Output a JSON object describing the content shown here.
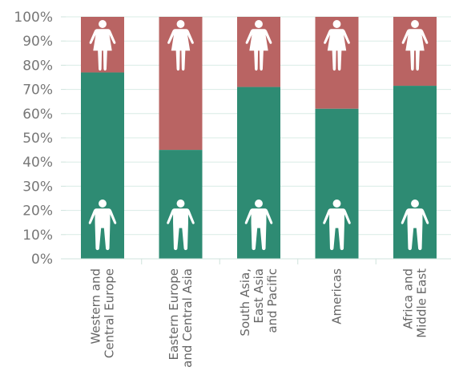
{
  "chart_data": {
    "type": "bar",
    "stacked": true,
    "percent": true,
    "categories": [
      [
        "Western and",
        "Central Europe"
      ],
      [
        "Eastern Europe",
        "and Central Asia"
      ],
      [
        "South Asia,",
        "East Asia",
        "and Pacific"
      ],
      [
        "Americas"
      ],
      [
        "Africa and",
        "Middle East"
      ]
    ],
    "series": [
      {
        "color": "#2e8b73",
        "icon": "male-figure-icon",
        "values": [
          77,
          45,
          71,
          62,
          71.5
        ]
      },
      {
        "color": "#b96463",
        "icon": "female-figure-icon",
        "values": [
          23,
          55,
          29,
          38,
          28.5
        ]
      }
    ],
    "ylim": [
      0,
      100
    ],
    "yticks": [
      "0%",
      "10%",
      "20%",
      "30%",
      "40%",
      "50%",
      "60%",
      "70%",
      "80%",
      "90%",
      "100%"
    ],
    "grid": true,
    "legend": "none"
  }
}
